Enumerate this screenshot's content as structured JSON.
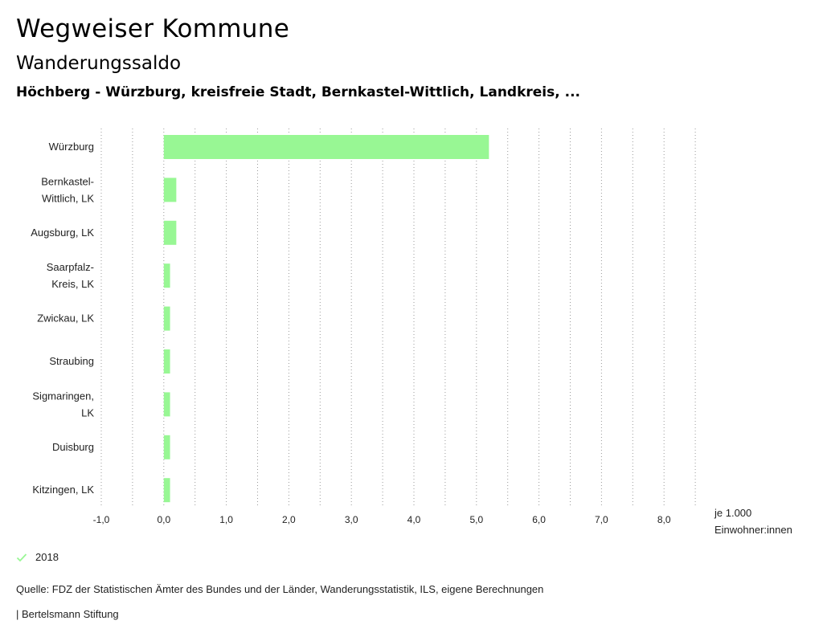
{
  "header": {
    "title": "Wegweiser Kommune",
    "subtitle": "Wanderungssaldo",
    "region": "Höchberg - Würzburg, kreisfreie Stadt, Bernkastel-Wittlich, Landkreis, ..."
  },
  "chart_data": {
    "type": "bar",
    "orientation": "horizontal",
    "categories": [
      [
        "Würzburg"
      ],
      [
        "Bernkastel-",
        "Wittlich, LK"
      ],
      [
        "Augsburg, LK"
      ],
      [
        "Saarpfalz-",
        "Kreis, LK"
      ],
      [
        "Zwickau, LK"
      ],
      [
        "Straubing"
      ],
      [
        "Sigmaringen,",
        "LK"
      ],
      [
        "Duisburg"
      ],
      [
        "Kitzingen, LK"
      ]
    ],
    "series": [
      {
        "name": "2018",
        "values": [
          5.2,
          0.2,
          0.2,
          0.1,
          0.1,
          0.1,
          0.1,
          0.1,
          0.1
        ]
      }
    ],
    "x_ticks": [
      "-1,0",
      "0,0",
      "1,0",
      "2,0",
      "3,0",
      "4,0",
      "5,0",
      "6,0",
      "7,0",
      "8,0"
    ],
    "xlim": [
      -1.0,
      8.5
    ],
    "x_unit": [
      "je 1.000",
      "Einwohner:innen"
    ],
    "grid": true,
    "bar_color": "#98f794",
    "legend_position": "bottom-left"
  },
  "legend": {
    "label": "2018",
    "icon": "check-icon",
    "color": "#98f794"
  },
  "footer": {
    "source": "Quelle: FDZ der Statistischen Ämter des Bundes und der Länder, Wanderungsstatistik, ILS, eigene Berechnungen",
    "credit": "| Bertelsmann Stiftung"
  }
}
